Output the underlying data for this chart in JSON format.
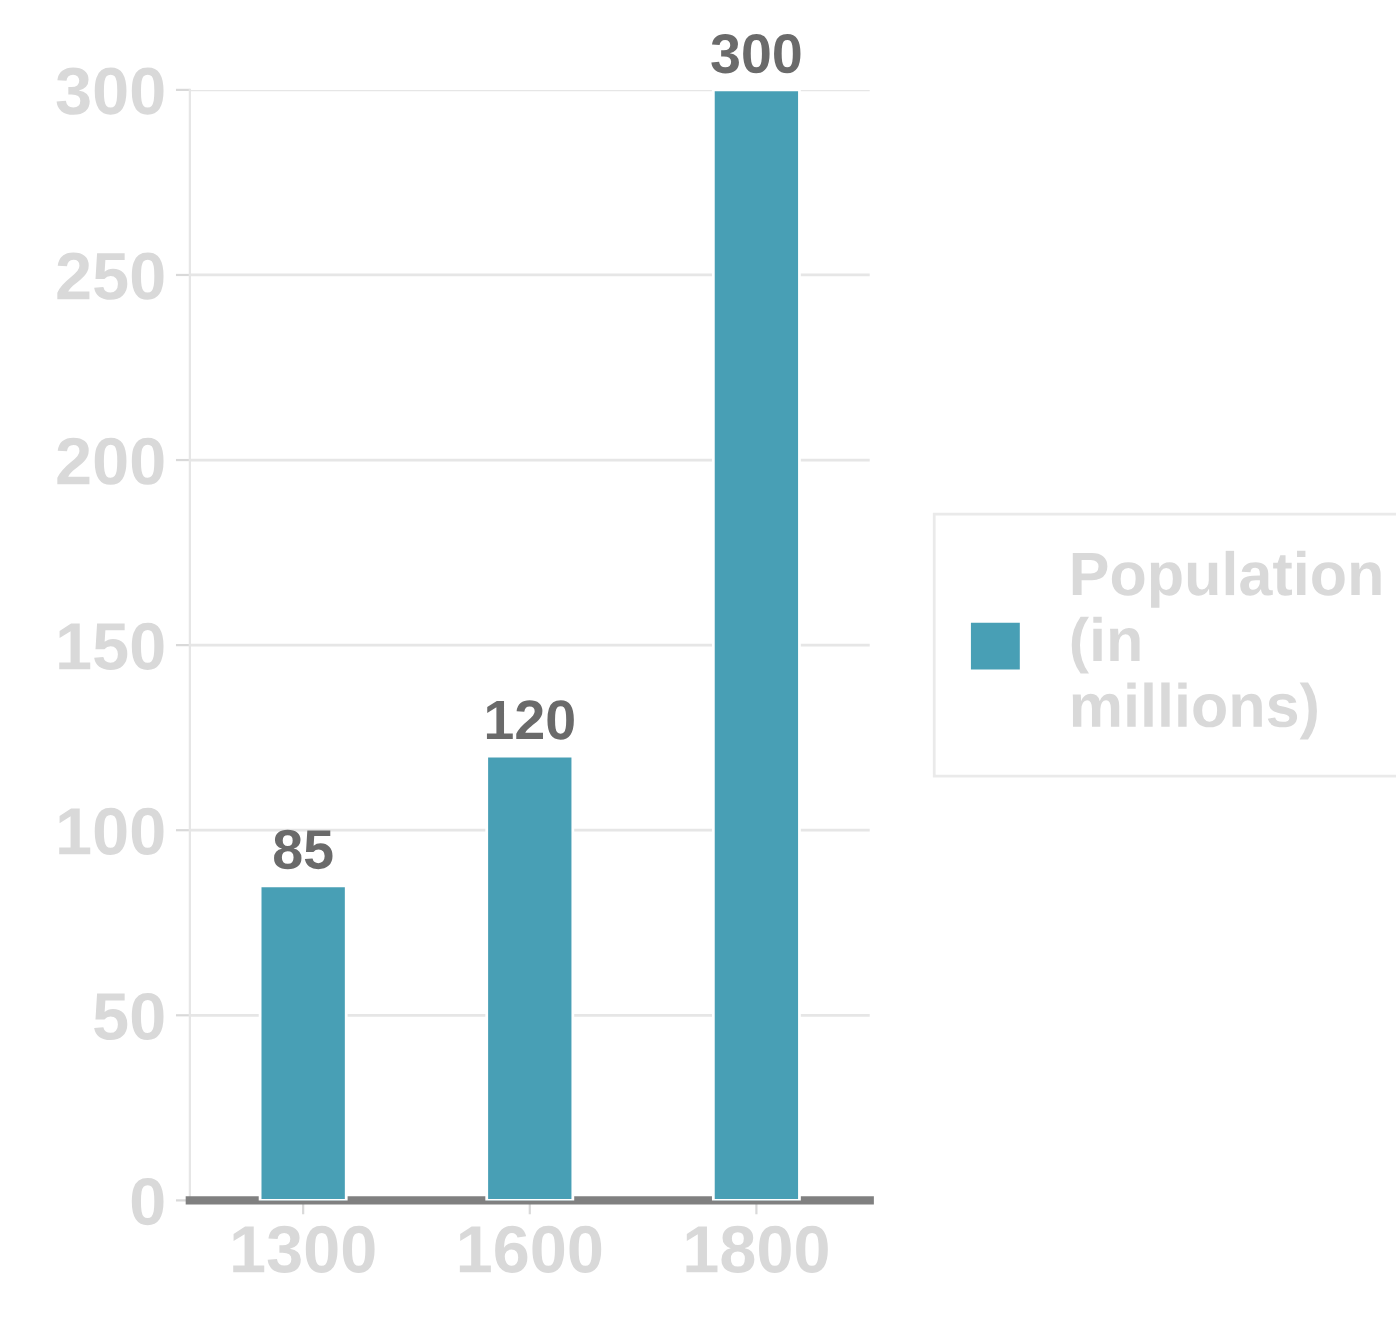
{
  "chart_data": {
    "type": "bar",
    "categories": [
      "1300",
      "1600",
      "1800"
    ],
    "series": [
      {
        "name": "Population (in millions)",
        "color": "#489fb5",
        "values": [
          85,
          120,
          300
        ]
      }
    ],
    "ylim": [
      0,
      300
    ],
    "yticks": [
      0,
      50,
      100,
      150,
      200,
      250,
      300
    ],
    "grid": "y",
    "legend": "right",
    "data_labels": true
  }
}
